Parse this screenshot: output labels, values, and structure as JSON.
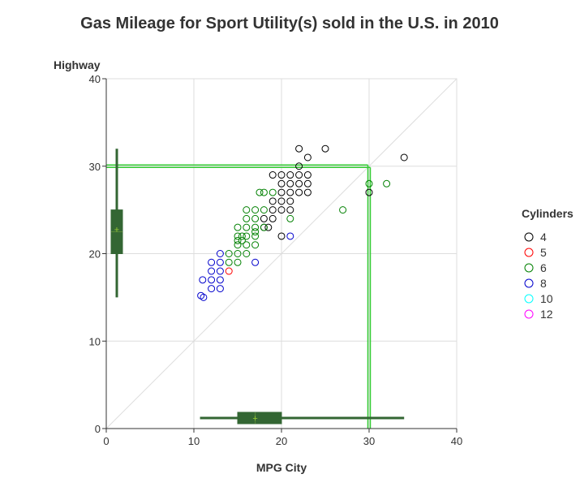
{
  "chart_data": {
    "type": "scatter",
    "title": "Gas Mileage for Sport Utility(s) sold in the U.S. in 2010",
    "xlabel": "MPG City",
    "ylabel": "Highway",
    "xlim": [
      0,
      40
    ],
    "ylim": [
      0,
      40
    ],
    "x_ticks": [
      "0",
      "10",
      "20",
      "30",
      "40"
    ],
    "y_ticks": [
      "0",
      "10",
      "20",
      "30",
      "40"
    ],
    "grid": true,
    "diagonal_reference_line": true,
    "reference_lines": {
      "x": 30,
      "y": 30,
      "color": "#33cc33"
    },
    "legend": {
      "title": "Cylinders",
      "placement": "right"
    },
    "series": [
      {
        "name": "4",
        "color": "#000000",
        "points": [
          [
            22,
            32
          ],
          [
            25,
            32
          ],
          [
            23,
            31
          ],
          [
            34,
            31
          ],
          [
            22,
            30
          ],
          [
            19,
            29
          ],
          [
            20,
            29
          ],
          [
            21,
            29
          ],
          [
            22,
            29
          ],
          [
            23,
            29
          ],
          [
            20,
            28
          ],
          [
            21,
            28
          ],
          [
            22,
            28
          ],
          [
            23,
            28
          ],
          [
            20,
            27
          ],
          [
            21,
            27
          ],
          [
            22,
            27
          ],
          [
            23,
            27
          ],
          [
            30,
            27
          ],
          [
            19,
            26
          ],
          [
            20,
            26
          ],
          [
            21,
            26
          ],
          [
            19,
            25
          ],
          [
            20,
            25
          ],
          [
            21,
            25
          ],
          [
            18,
            24
          ],
          [
            19,
            24
          ],
          [
            18,
            23
          ],
          [
            18.5,
            23
          ],
          [
            20,
            22
          ]
        ]
      },
      {
        "name": "5",
        "color": "#ff0000",
        "points": [
          [
            14,
            18
          ]
        ]
      },
      {
        "name": "6",
        "color": "#008000",
        "points": [
          [
            30,
            28
          ],
          [
            32,
            28
          ],
          [
            17.5,
            27
          ],
          [
            18,
            27
          ],
          [
            19,
            27
          ],
          [
            16,
            25
          ],
          [
            17,
            25
          ],
          [
            18,
            25
          ],
          [
            27,
            25
          ],
          [
            16,
            24
          ],
          [
            17,
            24
          ],
          [
            21,
            24
          ],
          [
            15,
            23
          ],
          [
            16,
            23
          ],
          [
            17,
            23
          ],
          [
            18,
            23
          ],
          [
            17,
            22.5
          ],
          [
            15,
            22
          ],
          [
            15.5,
            22
          ],
          [
            16,
            22
          ],
          [
            17,
            22
          ],
          [
            15,
            21.5
          ],
          [
            15.5,
            21.5
          ],
          [
            15,
            21
          ],
          [
            16,
            21
          ],
          [
            17,
            21
          ],
          [
            14,
            20
          ],
          [
            15,
            20
          ],
          [
            16,
            20
          ],
          [
            14,
            19
          ],
          [
            15,
            19
          ]
        ]
      },
      {
        "name": "8",
        "color": "#0000cc",
        "points": [
          [
            13,
            20
          ],
          [
            12,
            19
          ],
          [
            13,
            19
          ],
          [
            17,
            19
          ],
          [
            21,
            22
          ],
          [
            12,
            18
          ],
          [
            13,
            18
          ],
          [
            11,
            17
          ],
          [
            12,
            17
          ],
          [
            13,
            17
          ],
          [
            12,
            16
          ],
          [
            13,
            16
          ],
          [
            10.8,
            15.2
          ],
          [
            11.1,
            15
          ]
        ]
      },
      {
        "name": "10",
        "color": "#00ffff",
        "points": []
      },
      {
        "name": "12",
        "color": "#ff00ff",
        "points": []
      }
    ],
    "box_x": {
      "min": 10.7,
      "q1": 15,
      "median": 17,
      "mean": 17,
      "q3": 20,
      "max": 34,
      "color": "#336633",
      "mean_marker_color": "#99cc33"
    },
    "box_y": {
      "min": 15,
      "q1": 20,
      "median": 22.5,
      "mean": 22.8,
      "q3": 25,
      "max": 32,
      "color": "#336633",
      "mean_marker_color": "#99cc33"
    }
  }
}
